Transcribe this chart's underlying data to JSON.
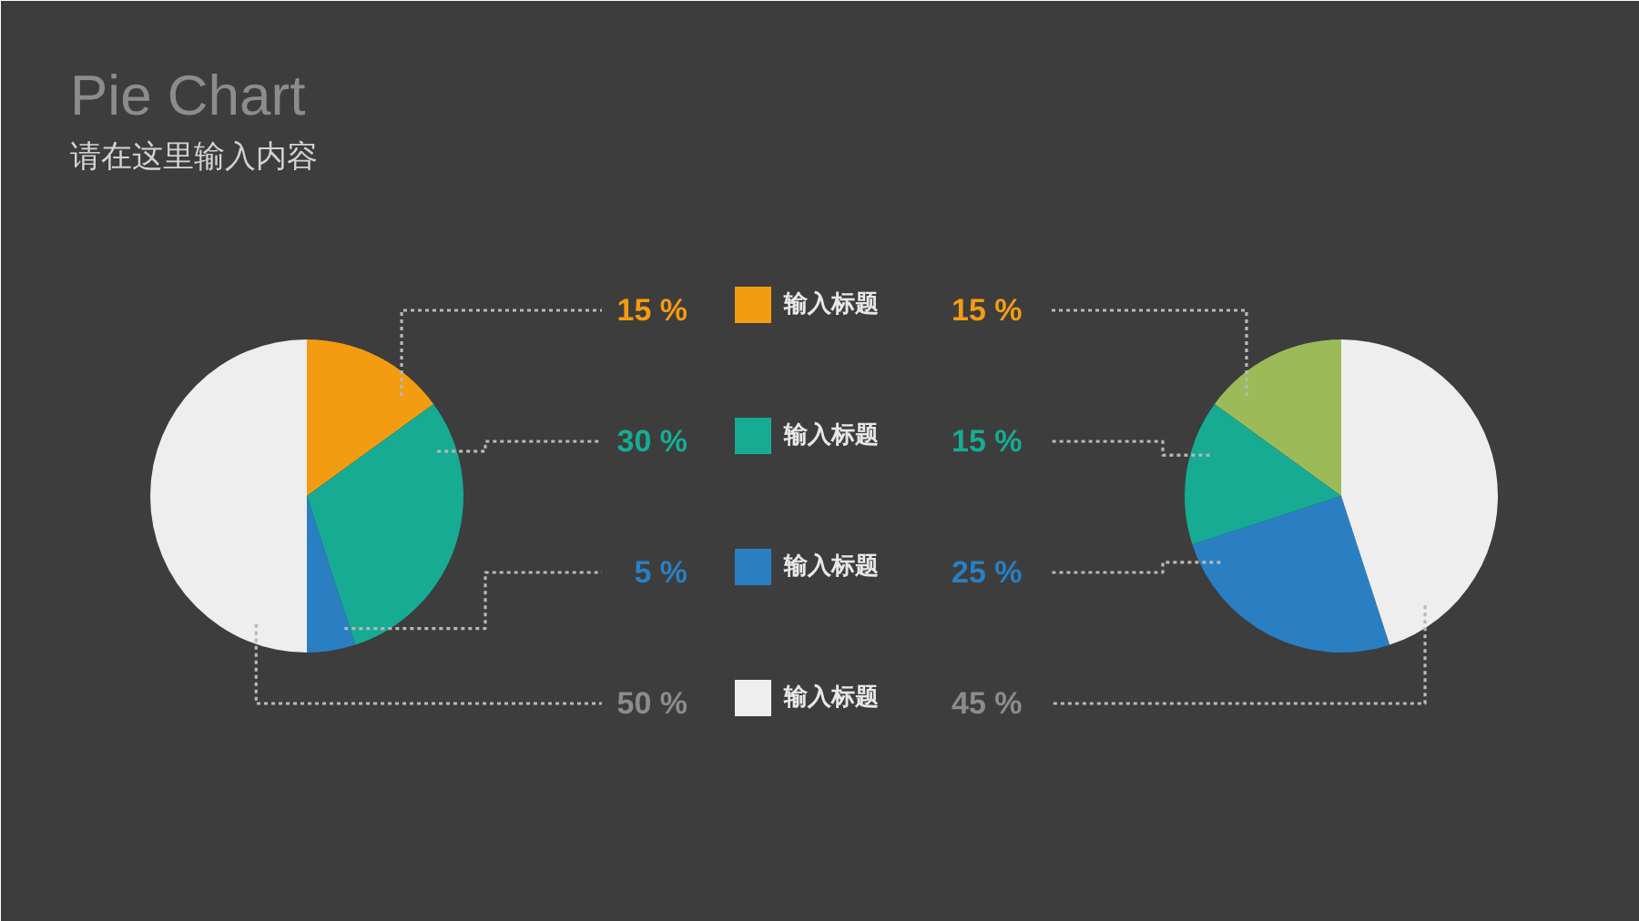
{
  "chart_data": [
    {
      "type": "pie",
      "title": "Pie Chart",
      "subtitle": "请在这里输入内容",
      "categories": [
        "输入标题",
        "输入标题",
        "输入标题",
        "输入标题"
      ],
      "values": [
        15,
        30,
        5,
        50
      ],
      "colors": [
        "#f39c12",
        "#17ab94",
        "#2a7fc2",
        "#eeeeee"
      ],
      "value_labels": [
        "15 %",
        "30 %",
        "5 %",
        "50 %"
      ],
      "legend": "right"
    },
    {
      "type": "pie",
      "categories": [
        null,
        null,
        null,
        null
      ],
      "values": [
        15,
        15,
        25,
        45
      ],
      "colors": [
        "#9cbb58",
        "#17ab94",
        "#2a7fc2",
        "#eeeeee"
      ],
      "value_labels": [
        "15 %",
        "15 %",
        "25 %",
        "45 %"
      ]
    }
  ]
}
